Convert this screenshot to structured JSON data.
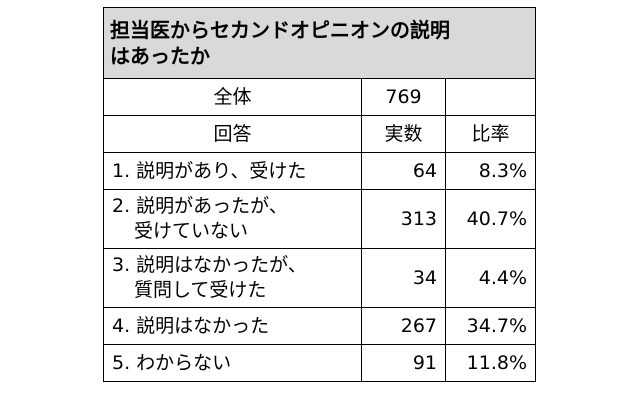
{
  "table": {
    "title_line1": "担当医からセカンドオピニオンの説明",
    "title_line2": "はあったか",
    "total_label": "全体",
    "total_value": "769",
    "total_extra": "",
    "headers": {
      "answer": "回答",
      "count": "実数",
      "ratio": "比率"
    },
    "rows": [
      {
        "line1": "1. 説明があり、受けた",
        "line2": "",
        "count": "64",
        "ratio": "8.3%"
      },
      {
        "line1": "2. 説明があったが、",
        "line2": "受けていない",
        "count": "313",
        "ratio": "40.7%"
      },
      {
        "line1": "3. 説明はなかったが、",
        "line2": "質問して受けた",
        "count": "34",
        "ratio": "4.4%"
      },
      {
        "line1": "4. 説明はなかった",
        "line2": "",
        "count": "267",
        "ratio": "34.7%"
      },
      {
        "line1": "5. わからない",
        "line2": "",
        "count": "91",
        "ratio": "11.8%"
      }
    ]
  }
}
